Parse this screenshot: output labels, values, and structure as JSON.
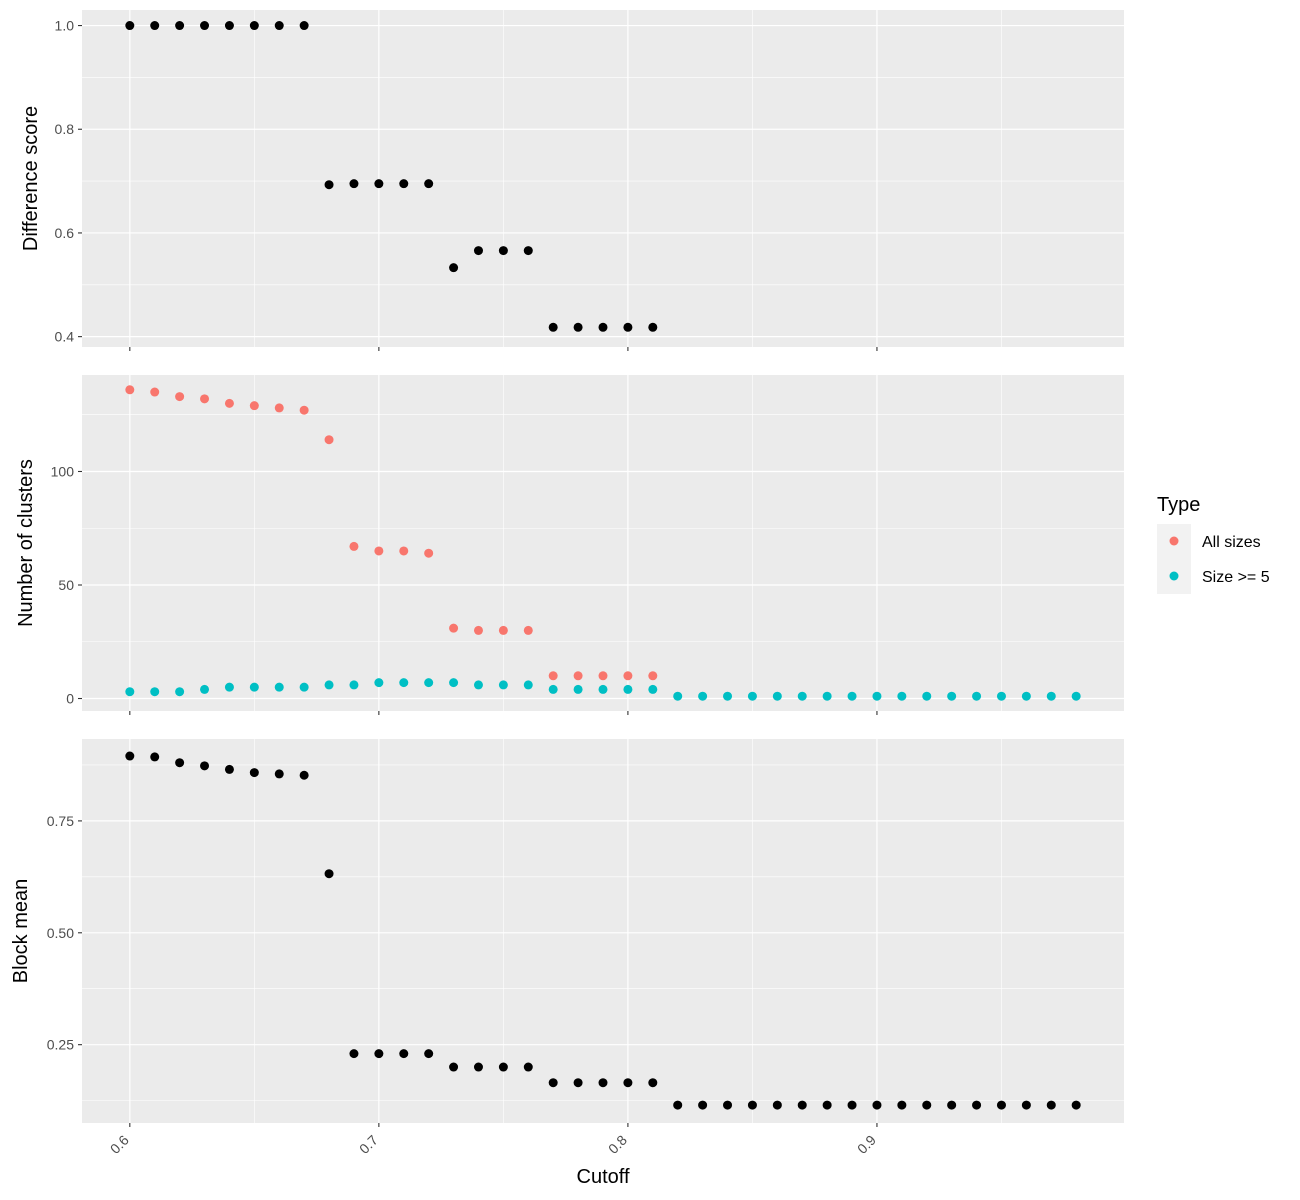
{
  "chart_data": {
    "type": "scatter",
    "x_label": "Cutoff",
    "x_ticks": [
      0.6,
      0.7,
      0.8,
      0.9
    ],
    "x_tick_labels": [
      "0.6",
      "0.7",
      "0.8",
      "0.9"
    ],
    "xlim": [
      0.5808,
      0.9992
    ],
    "background": "#ebebeb",
    "grid_color": "#ffffff",
    "legend": {
      "title": "Type",
      "entries": [
        {
          "label": "All sizes",
          "color": "#f8766d"
        },
        {
          "label": "Size >= 5",
          "color": "#00bfc4"
        }
      ]
    },
    "panels": [
      {
        "id": "difference-score",
        "y_label": "Difference score",
        "ylim": [
          0.38,
          1.03
        ],
        "y_ticks": [
          0.4,
          0.6,
          0.8,
          1.0
        ],
        "y_tick_labels": [
          "0.4",
          "0.6",
          "0.8",
          "1.0"
        ],
        "series": [
          {
            "name": "Difference score",
            "color": "#000000",
            "x": [
              0.6,
              0.61,
              0.62,
              0.63,
              0.64,
              0.65,
              0.66,
              0.67,
              0.68,
              0.69,
              0.7,
              0.71,
              0.72,
              0.73,
              0.74,
              0.75,
              0.76,
              0.77,
              0.78,
              0.79,
              0.8,
              0.81
            ],
            "y": [
              1.0,
              1.0,
              1.0,
              1.0,
              1.0,
              1.0,
              1.0,
              1.0,
              0.693,
              0.695,
              0.695,
              0.695,
              0.695,
              0.533,
              0.566,
              0.566,
              0.566,
              0.418,
              0.418,
              0.418,
              0.418,
              0.418
            ]
          }
        ]
      },
      {
        "id": "number-of-clusters",
        "y_label": "Number of clusters",
        "ylim": [
          -5.5,
          142.5
        ],
        "y_ticks": [
          0,
          50,
          100
        ],
        "y_tick_labels": [
          "0",
          "50",
          "100"
        ],
        "series": [
          {
            "name": "All sizes",
            "color": "#f8766d",
            "x": [
              0.6,
              0.61,
              0.62,
              0.63,
              0.64,
              0.65,
              0.66,
              0.67,
              0.68,
              0.69,
              0.7,
              0.71,
              0.72,
              0.73,
              0.74,
              0.75,
              0.76,
              0.77,
              0.78,
              0.79,
              0.8,
              0.81
            ],
            "y": [
              136,
              135,
              133,
              132,
              130,
              129,
              128,
              127,
              114,
              67,
              65,
              65,
              64,
              31,
              30,
              30,
              30,
              10,
              10,
              10,
              10,
              10
            ]
          },
          {
            "name": "Size >= 5",
            "color": "#00bfc4",
            "x": [
              0.6,
              0.61,
              0.62,
              0.63,
              0.64,
              0.65,
              0.66,
              0.67,
              0.68,
              0.69,
              0.7,
              0.71,
              0.72,
              0.73,
              0.74,
              0.75,
              0.76,
              0.77,
              0.78,
              0.79,
              0.8,
              0.81,
              0.82,
              0.83,
              0.84,
              0.85,
              0.86,
              0.87,
              0.88,
              0.89,
              0.9,
              0.91,
              0.92,
              0.93,
              0.94,
              0.95,
              0.96,
              0.97,
              0.98
            ],
            "y": [
              3,
              3,
              3,
              4,
              5,
              5,
              5,
              5,
              6,
              6,
              7,
              7,
              7,
              7,
              6,
              6,
              6,
              4,
              4,
              4,
              4,
              4,
              1,
              1,
              1,
              1,
              1,
              1,
              1,
              1,
              1,
              1,
              1,
              1,
              1,
              1,
              1,
              1,
              1
            ]
          }
        ]
      },
      {
        "id": "block-mean",
        "y_label": "Block mean",
        "ylim": [
          0.075,
          0.933
        ],
        "y_ticks": [
          0.25,
          0.5,
          0.75
        ],
        "y_tick_labels": [
          "0.25",
          "0.50",
          "0.75"
        ],
        "series": [
          {
            "name": "Block mean",
            "color": "#000000",
            "x": [
              0.6,
              0.61,
              0.62,
              0.63,
              0.64,
              0.65,
              0.66,
              0.67,
              0.68,
              0.69,
              0.7,
              0.71,
              0.72,
              0.73,
              0.74,
              0.75,
              0.76,
              0.77,
              0.78,
              0.79,
              0.8,
              0.81,
              0.82,
              0.83,
              0.84,
              0.85,
              0.86,
              0.87,
              0.88,
              0.89,
              0.9,
              0.91,
              0.92,
              0.93,
              0.94,
              0.95,
              0.96,
              0.97,
              0.98
            ],
            "y": [
              0.895,
              0.893,
              0.88,
              0.873,
              0.865,
              0.858,
              0.855,
              0.852,
              0.632,
              0.23,
              0.23,
              0.23,
              0.23,
              0.2,
              0.2,
              0.2,
              0.2,
              0.165,
              0.165,
              0.165,
              0.165,
              0.165,
              0.115,
              0.115,
              0.115,
              0.115,
              0.115,
              0.115,
              0.115,
              0.115,
              0.115,
              0.115,
              0.115,
              0.115,
              0.115,
              0.115,
              0.115,
              0.115,
              0.115
            ]
          }
        ]
      }
    ]
  }
}
